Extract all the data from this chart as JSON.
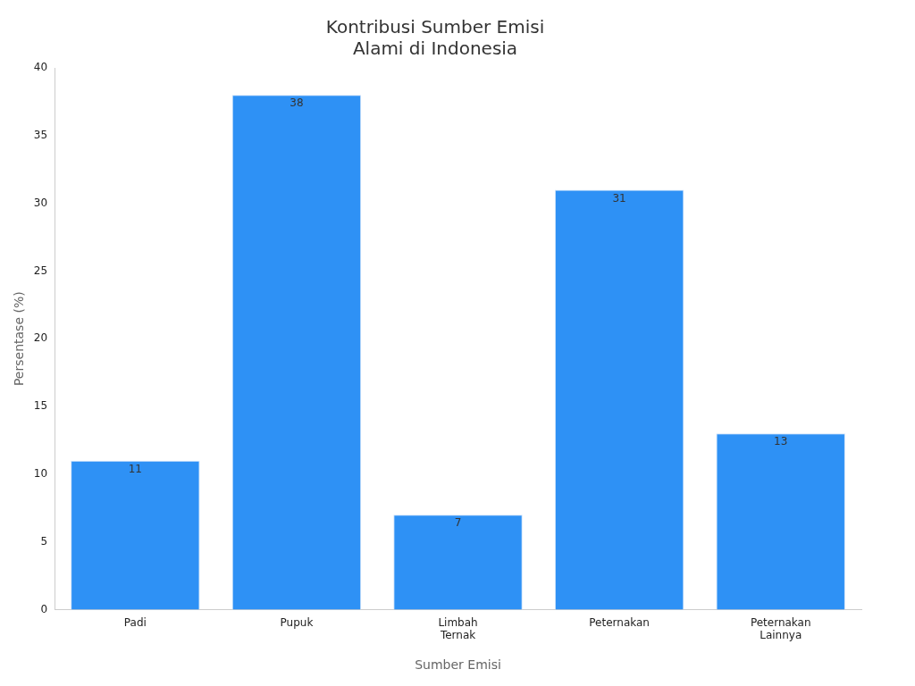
{
  "chart_data": {
    "type": "bar",
    "title": "Kontribusi Sumber Emisi Alami di Indonesia",
    "xlabel": "Sumber Emisi",
    "ylabel": "Persentase (%)",
    "categories": [
      "Padi",
      "Pupuk",
      "Limbah Ternak",
      "Peternakan",
      "Peternakan Lainnya"
    ],
    "values": [
      11,
      38,
      7,
      31,
      13
    ],
    "color": "#2e91f5",
    "ylim": [
      0,
      40
    ],
    "yticks": [
      0,
      5,
      10,
      15,
      20,
      25,
      30,
      35,
      40
    ],
    "grid": false,
    "legend": false,
    "data_labels": true
  }
}
